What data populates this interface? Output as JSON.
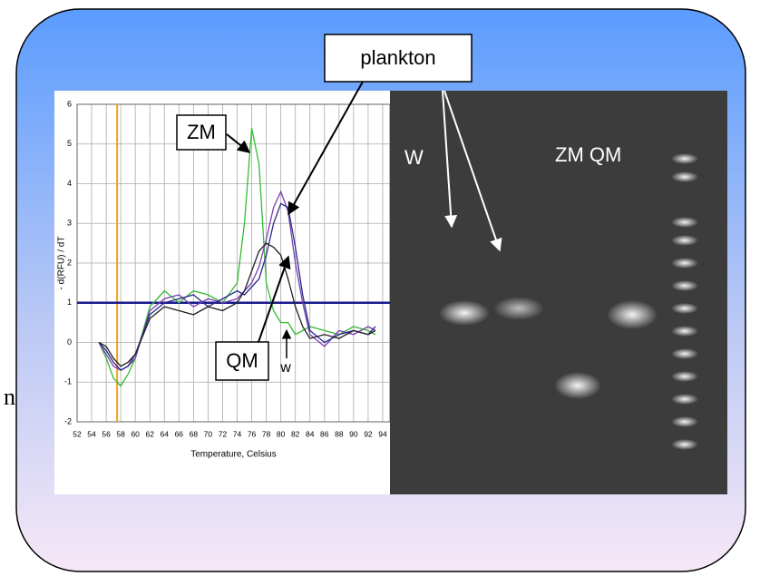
{
  "chart_data": {
    "type": "line",
    "x_label": "Temperature, Celsius",
    "y_label": "- d(RFU) / dT",
    "xlim": [
      52,
      95
    ],
    "ylim": [
      -2,
      6
    ],
    "xticks": [
      52,
      54,
      56,
      58,
      60,
      62,
      64,
      66,
      68,
      70,
      72,
      74,
      76,
      78,
      80,
      82,
      84,
      86,
      88,
      90,
      92,
      94
    ],
    "yticks": [
      -2,
      -1,
      0,
      1,
      2,
      3,
      4,
      5,
      6
    ],
    "grid": true,
    "threshold": 1,
    "threshold_color": "#1a1a8c",
    "marker_x": 57.5,
    "marker_color": "#f0a020",
    "x": [
      55,
      56,
      57,
      58,
      59,
      60,
      62,
      64,
      66,
      68,
      70,
      72,
      74,
      75,
      76,
      77,
      78,
      79,
      80,
      81,
      82,
      83,
      84,
      86,
      88,
      90,
      92,
      93
    ],
    "series": [
      {
        "color": "#33bb33",
        "values": [
          0,
          -0.4,
          -0.9,
          -1.1,
          -0.8,
          -0.4,
          0.9,
          1.3,
          1.0,
          1.3,
          1.2,
          1.0,
          1.5,
          3.0,
          5.4,
          4.5,
          1.5,
          0.8,
          0.5,
          0.5,
          0.2,
          0.3,
          0.4,
          0.3,
          0.2,
          0.4,
          0.3,
          0.2
        ]
      },
      {
        "color": "#7a3fb0",
        "values": [
          0,
          -0.3,
          -0.6,
          -0.7,
          -0.6,
          -0.4,
          0.8,
          1.1,
          1.2,
          0.9,
          1.1,
          1.0,
          1.1,
          1.3,
          1.5,
          1.9,
          2.6,
          3.4,
          3.8,
          3.3,
          2.0,
          1.0,
          0.2,
          -0.1,
          0.3,
          0.2,
          0.4,
          0.3
        ]
      },
      {
        "color": "#2a2a90",
        "values": [
          0,
          -0.2,
          -0.5,
          -0.7,
          -0.6,
          -0.3,
          0.7,
          1.0,
          1.1,
          1.2,
          0.9,
          1.1,
          1.3,
          1.2,
          1.4,
          1.6,
          2.2,
          3.0,
          3.5,
          3.4,
          2.4,
          1.2,
          0.3,
          0.0,
          0.2,
          0.3,
          0.2,
          0.4
        ]
      },
      {
        "color": "#222222",
        "values": [
          0,
          -0.1,
          -0.4,
          -0.6,
          -0.5,
          -0.3,
          0.6,
          0.9,
          0.8,
          0.7,
          0.9,
          0.8,
          1.0,
          1.3,
          1.8,
          2.3,
          2.5,
          2.4,
          2.2,
          1.6,
          0.9,
          0.4,
          0.1,
          0.2,
          0.1,
          0.3,
          0.2,
          0.3
        ]
      }
    ]
  },
  "labels": {
    "zm": "ZM",
    "qm": "QM",
    "w": "w",
    "plankton": "plankton",
    "gel_w": "W",
    "gel_zm_qm": "ZM QM",
    "fragment": "n"
  }
}
